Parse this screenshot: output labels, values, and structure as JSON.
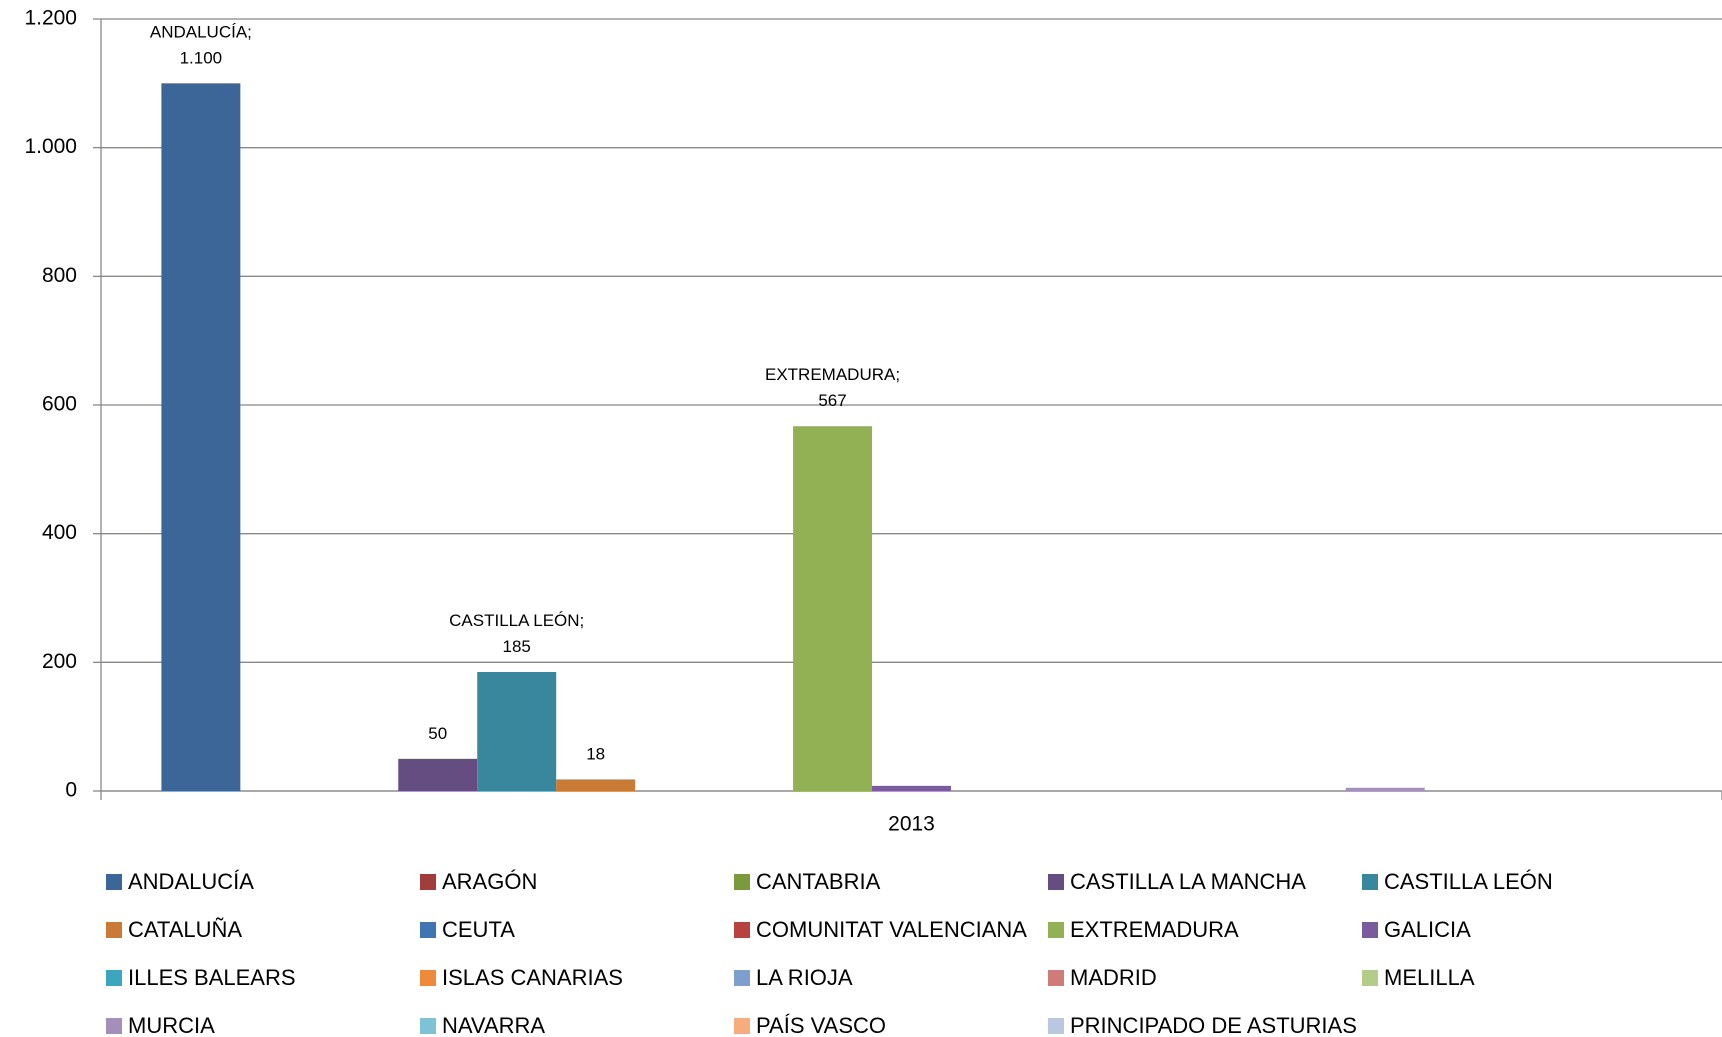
{
  "chart_data": {
    "type": "bar",
    "categories": [
      "2013"
    ],
    "ylim": [
      0,
      1200
    ],
    "yticks": [
      0,
      200,
      400,
      600,
      800,
      {
        "value": 1000,
        "label": "1.000"
      },
      {
        "value": 1200,
        "label": "1.200"
      }
    ],
    "grid": true,
    "legend": "bottom",
    "series": [
      {
        "name": "ANDALUCÍA",
        "color": "#3d6698",
        "values": [
          1100
        ],
        "value_labels": [
          "ANDALUCÍA;\n1.100"
        ]
      },
      {
        "name": "ARAGÓN",
        "color": "#a13d3a",
        "values": [
          0
        ]
      },
      {
        "name": "CANTABRIA",
        "color": "#7b9a3d",
        "values": [
          0
        ]
      },
      {
        "name": "CASTILLA LA MANCHA",
        "color": "#654d82",
        "values": [
          50
        ],
        "value_labels": [
          "50"
        ]
      },
      {
        "name": "CASTILLA LEÓN",
        "color": "#38879c",
        "values": [
          185
        ],
        "value_labels": [
          "CASTILLA LEÓN;\n185"
        ]
      },
      {
        "name": "CATALUÑA",
        "color": "#c97a35",
        "values": [
          18
        ],
        "value_labels": [
          "18"
        ]
      },
      {
        "name": "CEUTA",
        "color": "#4174b2",
        "values": [
          0
        ]
      },
      {
        "name": "COMUNITAT VALENCIANA",
        "color": "#b8423e",
        "values": [
          0
        ]
      },
      {
        "name": "EXTREMADURA",
        "color": "#92b154",
        "values": [
          567
        ],
        "value_labels": [
          "EXTREMADURA;\n567"
        ]
      },
      {
        "name": "GALICIA",
        "color": "#7a5c9e",
        "values": [
          8
        ]
      },
      {
        "name": "ILLES BALEARS",
        "color": "#3ca6bf",
        "values": [
          0
        ]
      },
      {
        "name": "ISLAS CANARIAS",
        "color": "#ee8a3a",
        "values": [
          0
        ]
      },
      {
        "name": "LA RIOJA",
        "color": "#7d9fce",
        "values": [
          0
        ]
      },
      {
        "name": "MADRID",
        "color": "#cf7b78",
        "values": [
          0
        ]
      },
      {
        "name": "MELILLA",
        "color": "#b3cc8a",
        "values": [
          0
        ]
      },
      {
        "name": "MURCIA",
        "color": "#a48fba",
        "values": [
          5
        ]
      },
      {
        "name": "NAVARRA",
        "color": "#7ec3d5",
        "values": [
          0
        ]
      },
      {
        "name": "PAÍS VASCO",
        "color": "#f5ad7d",
        "values": [
          0
        ]
      },
      {
        "name": "PRINCIPADO DE ASTURIAS",
        "color": "#b9c7e0",
        "values": [
          0
        ]
      }
    ]
  }
}
